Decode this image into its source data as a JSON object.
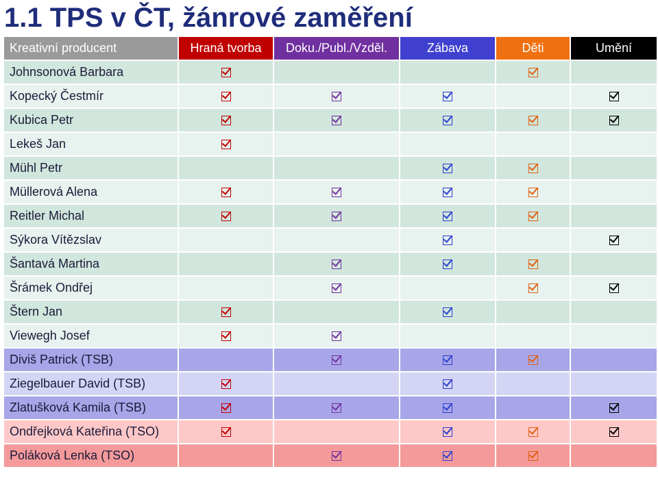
{
  "title": "1.1 TPS v ČT, žánrové zaměření",
  "colors": {
    "header": [
      "#9a9a9a",
      "#c00000",
      "#7030a0",
      "#4040d0",
      "#f07010",
      "#000000"
    ],
    "check": [
      "#c00000",
      "#7030a0",
      "#2a3fd0",
      "#e06010",
      "#000000"
    ]
  },
  "headers": [
    "Kreativní producent",
    "Hraná tvorba",
    "Doku./Publ./Vzděl.",
    "Zábava",
    "Děti",
    "Umění"
  ],
  "rows": [
    {
      "name": "Johnsonová Barbara",
      "marks": [
        true,
        false,
        false,
        true,
        false
      ],
      "group": "team"
    },
    {
      "name": "Kopecký Čestmír",
      "marks": [
        true,
        true,
        true,
        false,
        true
      ],
      "group": "team"
    },
    {
      "name": "Kubica Petr",
      "marks": [
        true,
        true,
        true,
        true,
        true
      ],
      "group": "team"
    },
    {
      "name": "Lekeš Jan",
      "marks": [
        true,
        false,
        false,
        false,
        false
      ],
      "group": "team"
    },
    {
      "name": "Mühl Petr",
      "marks": [
        false,
        false,
        true,
        true,
        false
      ],
      "group": "team"
    },
    {
      "name": "Müllerová Alena",
      "marks": [
        true,
        true,
        true,
        true,
        false
      ],
      "group": "team"
    },
    {
      "name": "Reitler Michal",
      "marks": [
        true,
        true,
        true,
        true,
        false
      ],
      "group": "team"
    },
    {
      "name": "Sýkora Vítězslav",
      "marks": [
        false,
        false,
        true,
        false,
        true
      ],
      "group": "team"
    },
    {
      "name": "Šantavá Martina",
      "marks": [
        false,
        true,
        true,
        true,
        false
      ],
      "group": "team"
    },
    {
      "name": "Šrámek Ondřej",
      "marks": [
        false,
        true,
        false,
        true,
        true
      ],
      "group": "team"
    },
    {
      "name": "Štern Jan",
      "marks": [
        true,
        false,
        true,
        false,
        false
      ],
      "group": "team"
    },
    {
      "name": "Viewegh Josef",
      "marks": [
        true,
        true,
        false,
        false,
        false
      ],
      "group": "team"
    },
    {
      "name": "Diviš Patrick (TSB)",
      "marks": [
        false,
        true,
        true,
        true,
        false
      ],
      "group": "TSB"
    },
    {
      "name": "Ziegelbauer David (TSB)",
      "marks": [
        true,
        false,
        true,
        false,
        false
      ],
      "group": "TSB"
    },
    {
      "name": "Zlatušková Kamila (TSB)",
      "marks": [
        true,
        true,
        true,
        false,
        true
      ],
      "group": "TSB"
    },
    {
      "name": "Ondřejková Kateřina (TSO)",
      "marks": [
        true,
        false,
        true,
        true,
        true
      ],
      "group": "TSO"
    },
    {
      "name": "Poláková Lenka (TSO)",
      "marks": [
        false,
        true,
        true,
        true,
        false
      ],
      "group": "TSO"
    }
  ]
}
